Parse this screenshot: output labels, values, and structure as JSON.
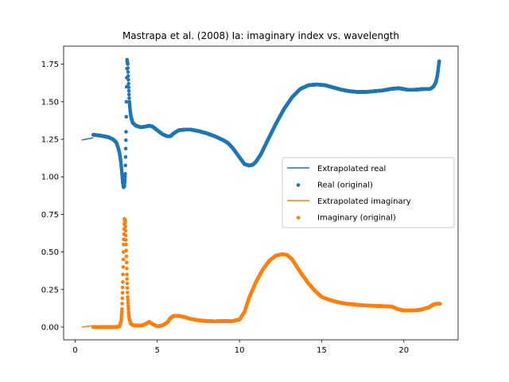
{
  "chart_data": {
    "type": "line",
    "title": "Mastrapa et al. (2008) Ia: imaginary index vs. wavelength",
    "xlabel": "",
    "ylabel": "",
    "xlim": [
      -0.7,
      23.3
    ],
    "ylim": [
      -0.085,
      1.87
    ],
    "xticks": [
      0,
      5,
      10,
      15,
      20
    ],
    "yticks": [
      0.0,
      0.25,
      0.5,
      0.75,
      1.0,
      1.25,
      1.5,
      1.75
    ],
    "xtick_labels": [
      "0",
      "5",
      "10",
      "15",
      "20"
    ],
    "ytick_labels": [
      "0.00",
      "0.25",
      "0.50",
      "0.75",
      "1.00",
      "1.25",
      "1.50",
      "1.75"
    ],
    "grid": false,
    "legend_position": "center-right",
    "colors": {
      "real": "#1f77b4",
      "imaginary": "#ff7f0e"
    },
    "series": [
      {
        "name": "Extrapolated real",
        "kind": "line",
        "color": "#1f77b4",
        "x": [
          0.4,
          1.1
        ],
        "y": [
          1.245,
          1.26
        ]
      },
      {
        "name": "Real (original)",
        "kind": "scatter",
        "color": "#1f77b4",
        "x": [
          1.1,
          1.5,
          2.0,
          2.3,
          2.5,
          2.6,
          2.7,
          2.78,
          2.85,
          2.9,
          2.95,
          3.0,
          3.05,
          3.1,
          3.13,
          3.16,
          3.2,
          3.25,
          3.3,
          3.35,
          3.4,
          3.5,
          3.7,
          4.0,
          4.3,
          4.5,
          4.7,
          5.0,
          5.3,
          5.6,
          5.8,
          6.0,
          6.3,
          6.7,
          7.0,
          7.5,
          8.0,
          8.5,
          9.0,
          9.3,
          9.6,
          10.0,
          10.3,
          10.6,
          10.8,
          11.0,
          11.3,
          11.7,
          12.2,
          12.7,
          13.2,
          13.7,
          14.2,
          14.7,
          15.2,
          15.7,
          16.2,
          16.7,
          17.2,
          17.7,
          18.2,
          18.7,
          19.2,
          19.7,
          20.2,
          20.7,
          21.2,
          21.6,
          21.8,
          21.95,
          22.05,
          22.15
        ],
        "y": [
          1.28,
          1.275,
          1.265,
          1.25,
          1.23,
          1.2,
          1.16,
          1.1,
          1.02,
          0.96,
          0.93,
          0.94,
          1.02,
          1.3,
          1.6,
          1.78,
          1.75,
          1.62,
          1.5,
          1.44,
          1.4,
          1.36,
          1.34,
          1.33,
          1.335,
          1.34,
          1.335,
          1.31,
          1.285,
          1.27,
          1.27,
          1.29,
          1.31,
          1.315,
          1.315,
          1.305,
          1.29,
          1.27,
          1.245,
          1.225,
          1.19,
          1.13,
          1.085,
          1.075,
          1.08,
          1.1,
          1.15,
          1.24,
          1.35,
          1.45,
          1.53,
          1.585,
          1.61,
          1.615,
          1.61,
          1.595,
          1.58,
          1.57,
          1.565,
          1.565,
          1.57,
          1.575,
          1.585,
          1.59,
          1.58,
          1.58,
          1.585,
          1.585,
          1.6,
          1.63,
          1.68,
          1.77
        ]
      },
      {
        "name": "Extrapolated imaginary",
        "kind": "line",
        "color": "#ff7f0e",
        "x": [
          0.4,
          1.1
        ],
        "y": [
          0.0,
          0.01
        ]
      },
      {
        "name": "Imaginary (original)",
        "kind": "scatter",
        "color": "#ff7f0e",
        "x": [
          1.1,
          1.5,
          2.0,
          2.5,
          2.7,
          2.8,
          2.85,
          2.9,
          2.95,
          3.0,
          3.05,
          3.1,
          3.15,
          3.2,
          3.25,
          3.3,
          3.4,
          3.6,
          4.0,
          4.3,
          4.5,
          4.7,
          5.0,
          5.3,
          5.6,
          5.8,
          6.0,
          6.3,
          6.7,
          7.0,
          7.5,
          8.0,
          8.5,
          9.0,
          9.5,
          10.0,
          10.3,
          10.6,
          11.0,
          11.4,
          11.8,
          12.2,
          12.6,
          12.9,
          13.2,
          13.5,
          13.8,
          14.2,
          14.6,
          15.0,
          15.5,
          16.0,
          16.5,
          17.0,
          17.5,
          18.0,
          18.5,
          19.0,
          19.3,
          19.6,
          20.0,
          20.5,
          21.0,
          21.5,
          21.8,
          22.0,
          22.2
        ],
        "y": [
          0.0,
          0.0,
          0.0,
          0.0,
          0.005,
          0.04,
          0.12,
          0.3,
          0.55,
          0.72,
          0.7,
          0.55,
          0.35,
          0.2,
          0.1,
          0.05,
          0.02,
          0.01,
          0.01,
          0.02,
          0.035,
          0.02,
          0.005,
          0.01,
          0.03,
          0.06,
          0.075,
          0.075,
          0.065,
          0.055,
          0.045,
          0.04,
          0.038,
          0.04,
          0.038,
          0.05,
          0.1,
          0.2,
          0.3,
          0.38,
          0.44,
          0.475,
          0.485,
          0.48,
          0.45,
          0.4,
          0.35,
          0.29,
          0.24,
          0.2,
          0.18,
          0.165,
          0.155,
          0.15,
          0.145,
          0.142,
          0.14,
          0.138,
          0.135,
          0.12,
          0.11,
          0.11,
          0.115,
          0.13,
          0.15,
          0.155,
          0.155
        ]
      }
    ]
  }
}
